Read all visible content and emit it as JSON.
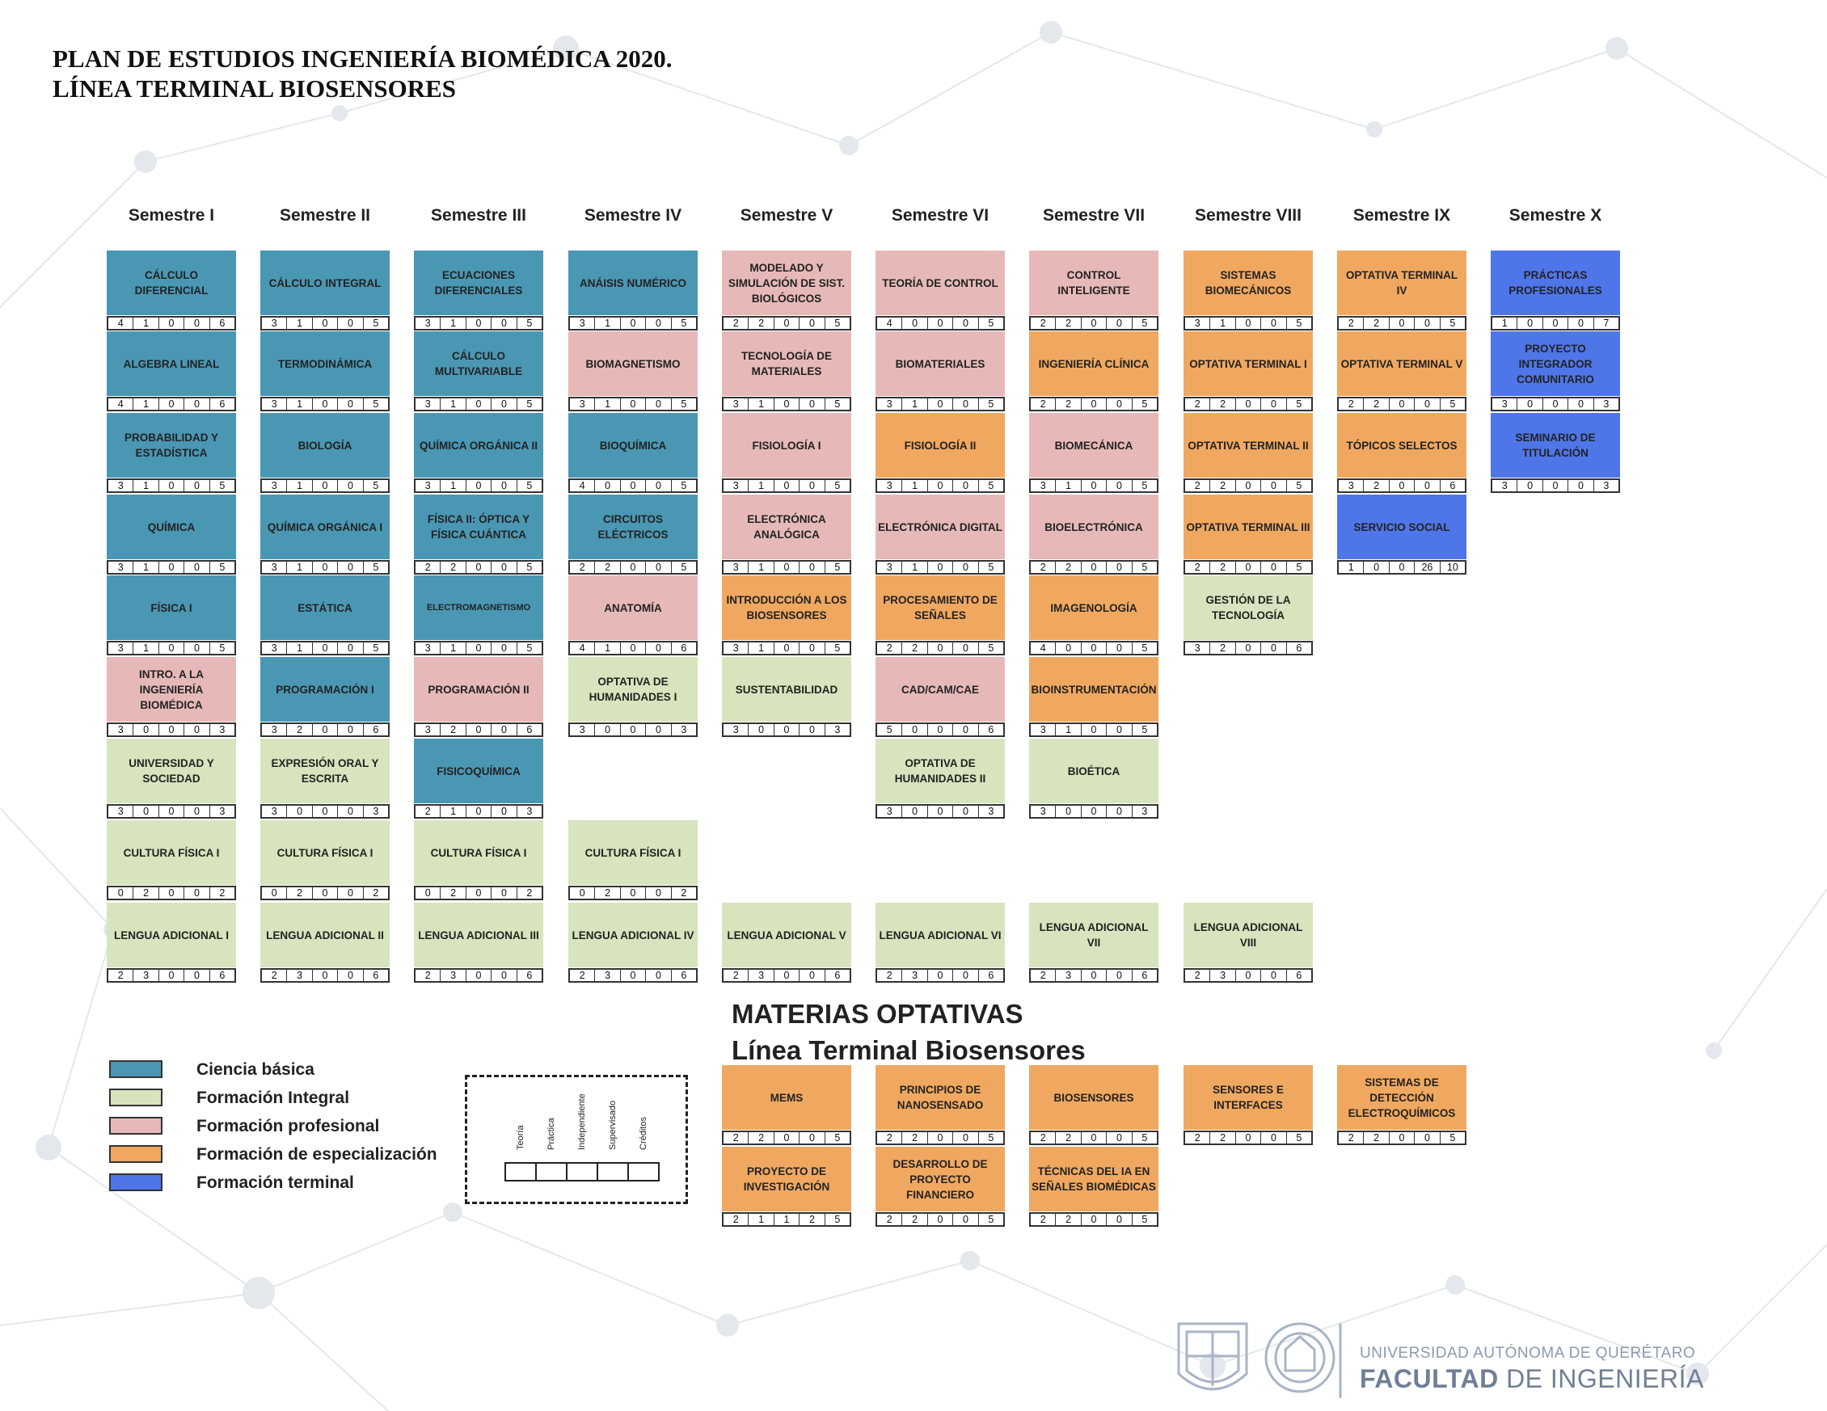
{
  "title": {
    "line1": "PLAN DE ESTUDIOS INGENIERÍA BIOMÉDICA 2020.",
    "line2": "LÍNEA TERMINAL BIOSENSORES"
  },
  "colors": {
    "ciencia_basica": "#4a97b4",
    "formacion_integral": "#d7e4bd",
    "formacion_profesional": "#e6b9b8",
    "formacion_especializacion": "#f0a860",
    "formacion_terminal": "#4f76e8"
  },
  "semesters": [
    {
      "label": "Semestre I",
      "courses": [
        {
          "row": 0,
          "name": "CÁLCULO DIFERENCIAL",
          "cat": "basic",
          "u": [
            "4",
            "1",
            "0",
            "0",
            "6"
          ]
        },
        {
          "row": 1,
          "name": "ALGEBRA LINEAL",
          "cat": "basic",
          "u": [
            "4",
            "1",
            "0",
            "0",
            "6"
          ]
        },
        {
          "row": 2,
          "name": "PROBABILIDAD Y ESTADÍSTICA",
          "cat": "basic",
          "u": [
            "3",
            "1",
            "0",
            "0",
            "5"
          ]
        },
        {
          "row": 3,
          "name": "QUÍMICA",
          "cat": "basic",
          "u": [
            "3",
            "1",
            "0",
            "0",
            "5"
          ]
        },
        {
          "row": 4,
          "name": "FÍSICA I",
          "cat": "basic",
          "u": [
            "3",
            "1",
            "0",
            "0",
            "5"
          ]
        },
        {
          "row": 5,
          "name": "INTRO. A LA INGENIERÍA BIOMÉDICA",
          "cat": "prof",
          "u": [
            "3",
            "0",
            "0",
            "0",
            "3"
          ]
        },
        {
          "row": 6,
          "name": "UNIVERSIDAD Y SOCIEDAD",
          "cat": "integral",
          "u": [
            "3",
            "0",
            "0",
            "0",
            "3"
          ]
        },
        {
          "row": 7,
          "name": "CULTURA FÍSICA I",
          "cat": "integral",
          "u": [
            "0",
            "2",
            "0",
            "0",
            "2"
          ]
        },
        {
          "row": 8,
          "name": "LENGUA ADICIONAL I",
          "cat": "integral",
          "u": [
            "2",
            "3",
            "0",
            "0",
            "6"
          ]
        }
      ]
    },
    {
      "label": "Semestre II",
      "courses": [
        {
          "row": 0,
          "name": "CÁLCULO INTEGRAL",
          "cat": "basic",
          "u": [
            "3",
            "1",
            "0",
            "0",
            "5"
          ]
        },
        {
          "row": 1,
          "name": "TERMODINÁMICA",
          "cat": "basic",
          "u": [
            "3",
            "1",
            "0",
            "0",
            "5"
          ]
        },
        {
          "row": 2,
          "name": "BIOLOGÍA",
          "cat": "basic",
          "u": [
            "3",
            "1",
            "0",
            "0",
            "5"
          ]
        },
        {
          "row": 3,
          "name": "QUÍMICA ORGÁNICA I",
          "cat": "basic",
          "u": [
            "3",
            "1",
            "0",
            "0",
            "5"
          ]
        },
        {
          "row": 4,
          "name": "ESTÁTICA",
          "cat": "basic",
          "u": [
            "3",
            "1",
            "0",
            "0",
            "5"
          ]
        },
        {
          "row": 5,
          "name": "PROGRAMACIÓN I",
          "cat": "basic",
          "u": [
            "3",
            "2",
            "0",
            "0",
            "6"
          ]
        },
        {
          "row": 6,
          "name": "EXPRESIÓN ORAL Y ESCRITA",
          "cat": "integral",
          "u": [
            "3",
            "0",
            "0",
            "0",
            "3"
          ]
        },
        {
          "row": 7,
          "name": "CULTURA FÍSICA I",
          "cat": "integral",
          "u": [
            "0",
            "2",
            "0",
            "0",
            "2"
          ]
        },
        {
          "row": 8,
          "name": "LENGUA ADICIONAL II",
          "cat": "integral",
          "u": [
            "2",
            "3",
            "0",
            "0",
            "6"
          ]
        }
      ]
    },
    {
      "label": "Semestre III",
      "courses": [
        {
          "row": 0,
          "name": "ECUACIONES DIFERENCIALES",
          "cat": "basic",
          "u": [
            "3",
            "1",
            "0",
            "0",
            "5"
          ]
        },
        {
          "row": 1,
          "name": "CÁLCULO MULTIVARIABLE",
          "cat": "basic",
          "u": [
            "3",
            "1",
            "0",
            "0",
            "5"
          ]
        },
        {
          "row": 2,
          "name": "QUÍMICA ORGÁNICA II",
          "cat": "basic",
          "u": [
            "3",
            "1",
            "0",
            "0",
            "5"
          ]
        },
        {
          "row": 3,
          "name": "FÍSICA II: ÓPTICA Y FÍSICA CUÁNTICA",
          "cat": "basic",
          "u": [
            "2",
            "2",
            "0",
            "0",
            "5"
          ]
        },
        {
          "row": 4,
          "name": "ELECTROMAGNETISMO",
          "cat": "basic",
          "small": true,
          "u": [
            "3",
            "1",
            "0",
            "0",
            "5"
          ]
        },
        {
          "row": 5,
          "name": "PROGRAMACIÓN II",
          "cat": "prof",
          "u": [
            "3",
            "2",
            "0",
            "0",
            "6"
          ]
        },
        {
          "row": 6,
          "name": "FISICOQUÍMICA",
          "cat": "basic",
          "u": [
            "2",
            "1",
            "0",
            "0",
            "3"
          ]
        },
        {
          "row": 7,
          "name": "CULTURA FÍSICA I",
          "cat": "integral",
          "u": [
            "0",
            "2",
            "0",
            "0",
            "2"
          ]
        },
        {
          "row": 8,
          "name": "LENGUA ADICIONAL III",
          "cat": "integral",
          "u": [
            "2",
            "3",
            "0",
            "0",
            "6"
          ]
        }
      ]
    },
    {
      "label": "Semestre IV",
      "courses": [
        {
          "row": 0,
          "name": "ANÁISIS NUMÉRICO",
          "cat": "basic",
          "u": [
            "3",
            "1",
            "0",
            "0",
            "5"
          ]
        },
        {
          "row": 1,
          "name": "BIOMAGNETISMO",
          "cat": "prof",
          "u": [
            "3",
            "1",
            "0",
            "0",
            "5"
          ]
        },
        {
          "row": 2,
          "name": "BIOQUÍMICA",
          "cat": "basic",
          "u": [
            "4",
            "0",
            "0",
            "0",
            "5"
          ]
        },
        {
          "row": 3,
          "name": "CIRCUITOS ELÉCTRICOS",
          "cat": "basic",
          "u": [
            "2",
            "2",
            "0",
            "0",
            "5"
          ]
        },
        {
          "row": 4,
          "name": "ANATOMÍA",
          "cat": "prof",
          "u": [
            "4",
            "1",
            "0",
            "0",
            "6"
          ]
        },
        {
          "row": 5,
          "name": "OPTATIVA DE HUMANIDADES I",
          "cat": "integral",
          "u": [
            "3",
            "0",
            "0",
            "0",
            "3"
          ]
        },
        {
          "row": 7,
          "name": "CULTURA FÍSICA I",
          "cat": "integral",
          "u": [
            "0",
            "2",
            "0",
            "0",
            "2"
          ]
        },
        {
          "row": 8,
          "name": "LENGUA ADICIONAL IV",
          "cat": "integral",
          "u": [
            "2",
            "3",
            "0",
            "0",
            "6"
          ]
        }
      ]
    },
    {
      "label": "Semestre V",
      "courses": [
        {
          "row": 0,
          "name": "MODELADO Y SIMULACIÓN DE SIST. BIOLÓGICOS",
          "cat": "prof",
          "u": [
            "2",
            "2",
            "0",
            "0",
            "5"
          ]
        },
        {
          "row": 1,
          "name": "TECNOLOGÍA DE MATERIALES",
          "cat": "prof",
          "u": [
            "3",
            "1",
            "0",
            "0",
            "5"
          ]
        },
        {
          "row": 2,
          "name": "FISIOLOGÍA I",
          "cat": "prof",
          "u": [
            "3",
            "1",
            "0",
            "0",
            "5"
          ]
        },
        {
          "row": 3,
          "name": "ELECTRÓNICA ANALÓGICA",
          "cat": "prof",
          "u": [
            "3",
            "1",
            "0",
            "0",
            "5"
          ]
        },
        {
          "row": 4,
          "name": "INTRODUCCIÓN A LOS BIOSENSORES",
          "cat": "esp",
          "u": [
            "3",
            "1",
            "0",
            "0",
            "5"
          ]
        },
        {
          "row": 5,
          "name": "SUSTENTABILIDAD",
          "cat": "integral",
          "u": [
            "3",
            "0",
            "0",
            "0",
            "3"
          ]
        },
        {
          "row": 8,
          "name": "LENGUA ADICIONAL V",
          "cat": "integral",
          "u": [
            "2",
            "3",
            "0",
            "0",
            "6"
          ]
        }
      ]
    },
    {
      "label": "Semestre VI",
      "courses": [
        {
          "row": 0,
          "name": "TEORÍA DE CONTROL",
          "cat": "prof",
          "u": [
            "4",
            "0",
            "0",
            "0",
            "5"
          ]
        },
        {
          "row": 1,
          "name": "BIOMATERIALES",
          "cat": "prof",
          "u": [
            "3",
            "1",
            "0",
            "0",
            "5"
          ]
        },
        {
          "row": 2,
          "name": "FISIOLOGÍA II",
          "cat": "esp",
          "u": [
            "3",
            "1",
            "0",
            "0",
            "5"
          ]
        },
        {
          "row": 3,
          "name": "ELECTRÓNICA DIGITAL",
          "cat": "prof",
          "u": [
            "3",
            "1",
            "0",
            "0",
            "5"
          ]
        },
        {
          "row": 4,
          "name": "PROCESAMIENTO DE SEÑALES",
          "cat": "esp",
          "u": [
            "2",
            "2",
            "0",
            "0",
            "5"
          ]
        },
        {
          "row": 5,
          "name": "CAD/CAM/CAE",
          "cat": "prof",
          "u": [
            "5",
            "0",
            "0",
            "0",
            "6"
          ]
        },
        {
          "row": 6,
          "name": "OPTATIVA DE HUMANIDADES II",
          "cat": "integral",
          "u": [
            "3",
            "0",
            "0",
            "0",
            "3"
          ]
        },
        {
          "row": 8,
          "name": "LENGUA ADICIONAL VI",
          "cat": "integral",
          "u": [
            "2",
            "3",
            "0",
            "0",
            "6"
          ]
        }
      ]
    },
    {
      "label": "Semestre VII",
      "courses": [
        {
          "row": 0,
          "name": "CONTROL INTELIGENTE",
          "cat": "prof",
          "u": [
            "2",
            "2",
            "0",
            "0",
            "5"
          ]
        },
        {
          "row": 1,
          "name": "INGENIERÍA CLÍNICA",
          "cat": "esp",
          "u": [
            "2",
            "2",
            "0",
            "0",
            "5"
          ]
        },
        {
          "row": 2,
          "name": "BIOMECÁNICA",
          "cat": "prof",
          "u": [
            "3",
            "1",
            "0",
            "0",
            "5"
          ]
        },
        {
          "row": 3,
          "name": "BIOELECTRÓNICA",
          "cat": "prof",
          "u": [
            "2",
            "2",
            "0",
            "0",
            "5"
          ]
        },
        {
          "row": 4,
          "name": "IMAGENOLOGÍA",
          "cat": "esp",
          "u": [
            "4",
            "0",
            "0",
            "0",
            "5"
          ]
        },
        {
          "row": 5,
          "name": "BIOINSTRUMENTACIÓN",
          "cat": "esp",
          "u": [
            "3",
            "1",
            "0",
            "0",
            "5"
          ]
        },
        {
          "row": 6,
          "name": "BIOÉTICA",
          "cat": "integral",
          "u": [
            "3",
            "0",
            "0",
            "0",
            "3"
          ]
        },
        {
          "row": 8,
          "name": "LENGUA ADICIONAL VII",
          "cat": "integral",
          "u": [
            "2",
            "3",
            "0",
            "0",
            "6"
          ]
        }
      ]
    },
    {
      "label": "Semestre VIII",
      "courses": [
        {
          "row": 0,
          "name": "SISTEMAS BIOMECÁNICOS",
          "cat": "esp",
          "u": [
            "3",
            "1",
            "0",
            "0",
            "5"
          ]
        },
        {
          "row": 1,
          "name": "OPTATIVA TERMINAL I",
          "cat": "esp",
          "u": [
            "2",
            "2",
            "0",
            "0",
            "5"
          ]
        },
        {
          "row": 2,
          "name": "OPTATIVA TERMINAL II",
          "cat": "esp",
          "u": [
            "2",
            "2",
            "0",
            "0",
            "5"
          ]
        },
        {
          "row": 3,
          "name": "OPTATIVA TERMINAL III",
          "cat": "esp",
          "u": [
            "2",
            "2",
            "0",
            "0",
            "5"
          ]
        },
        {
          "row": 4,
          "name": "GESTIÓN DE LA TECNOLOGÍA",
          "cat": "integral",
          "u": [
            "3",
            "2",
            "0",
            "0",
            "6"
          ]
        },
        {
          "row": 8,
          "name": "LENGUA ADICIONAL VIII",
          "cat": "integral",
          "u": [
            "2",
            "3",
            "0",
            "0",
            "6"
          ]
        }
      ]
    },
    {
      "label": "Semestre IX",
      "courses": [
        {
          "row": 0,
          "name": "OPTATIVA TERMINAL IV",
          "cat": "esp",
          "u": [
            "2",
            "2",
            "0",
            "0",
            "5"
          ]
        },
        {
          "row": 1,
          "name": "OPTATIVA TERMINAL V",
          "cat": "esp",
          "u": [
            "2",
            "2",
            "0",
            "0",
            "5"
          ]
        },
        {
          "row": 2,
          "name": "TÓPICOS SELECTOS",
          "cat": "esp",
          "u": [
            "3",
            "2",
            "0",
            "0",
            "6"
          ]
        },
        {
          "row": 3,
          "name": "SERVICIO SOCIAL",
          "cat": "term",
          "u": [
            "1",
            "0",
            "0",
            "26",
            "10"
          ]
        }
      ]
    },
    {
      "label": "Semestre X",
      "courses": [
        {
          "row": 0,
          "name": "PRÁCTICAS PROFESIONALES",
          "cat": "term",
          "u": [
            "1",
            "0",
            "0",
            "0",
            "7"
          ]
        },
        {
          "row": 1,
          "name": "PROYECTO INTEGRADOR COMUNITARIO",
          "cat": "term",
          "u": [
            "3",
            "0",
            "0",
            "0",
            "3"
          ]
        },
        {
          "row": 2,
          "name": "SEMINARIO DE TITULACIÓN",
          "cat": "term",
          "u": [
            "3",
            "0",
            "0",
            "0",
            "3"
          ]
        }
      ]
    }
  ],
  "optativas": {
    "title1": "MATERIAS OPTATIVAS",
    "title2": "Línea Terminal Biosensores",
    "courses": [
      {
        "col": 4,
        "row": 0,
        "name": "MEMS",
        "u": [
          "2",
          "2",
          "0",
          "0",
          "5"
        ]
      },
      {
        "col": 5,
        "row": 0,
        "name": "PRINCIPIOS DE NANOSENSADO",
        "u": [
          "2",
          "2",
          "0",
          "0",
          "5"
        ]
      },
      {
        "col": 6,
        "row": 0,
        "name": "BIOSENSORES",
        "u": [
          "2",
          "2",
          "0",
          "0",
          "5"
        ]
      },
      {
        "col": 7,
        "row": 0,
        "name": "SENSORES E INTERFACES",
        "u": [
          "2",
          "2",
          "0",
          "0",
          "5"
        ]
      },
      {
        "col": 8,
        "row": 0,
        "name": "SISTEMAS DE DETECCIÓN ELECTROQUÍMICOS",
        "u": [
          "2",
          "2",
          "0",
          "0",
          "5"
        ]
      },
      {
        "col": 4,
        "row": 1,
        "name": "PROYECTO DE INVESTIGACIÓN",
        "u": [
          "2",
          "1",
          "1",
          "2",
          "5"
        ]
      },
      {
        "col": 5,
        "row": 1,
        "name": "DESARROLLO DE PROYECTO FINANCIERO",
        "u": [
          "2",
          "2",
          "0",
          "0",
          "5"
        ]
      },
      {
        "col": 6,
        "row": 1,
        "name": "TÉCNICAS DEL IA EN SEÑALES BIOMÉDICAS",
        "u": [
          "2",
          "2",
          "0",
          "0",
          "5"
        ]
      }
    ]
  },
  "legend": [
    {
      "label": "Ciencia básica",
      "cat": "basic"
    },
    {
      "label": "Formación Integral",
      "cat": "integral"
    },
    {
      "label": "Formación profesional",
      "cat": "prof"
    },
    {
      "label": "Formación de especialización",
      "cat": "esp"
    },
    {
      "label": "Formación terminal",
      "cat": "term"
    }
  ],
  "key": {
    "labels": [
      "Teoría",
      "Práctica",
      "Independiente",
      "Supervisado",
      "Créditos"
    ]
  },
  "footer": {
    "university": "UNIVERSIDAD AUTÓNOMA DE QUERÉTARO",
    "faculty_bold": "FACULTAD",
    "faculty_rest": " DE INGENIERÍA"
  }
}
